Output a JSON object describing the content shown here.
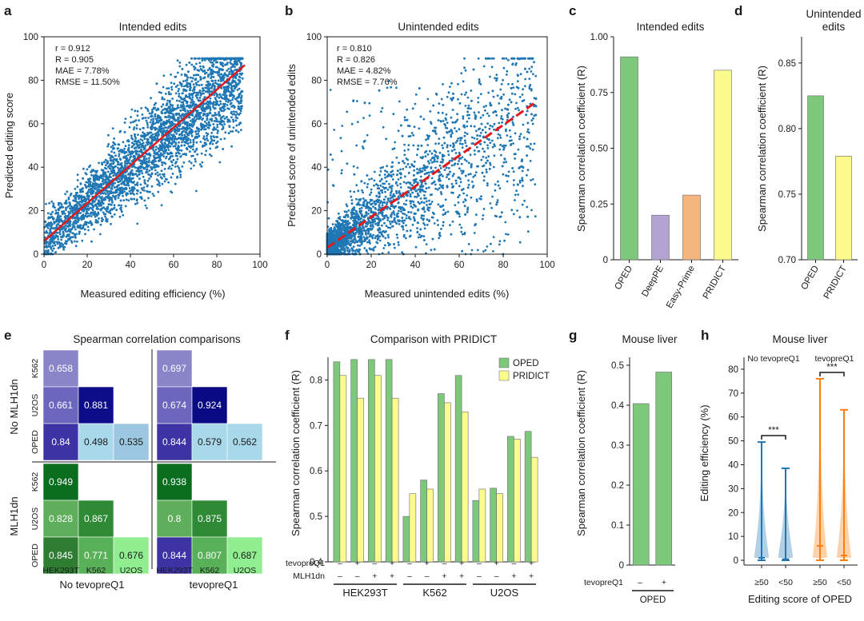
{
  "panels": {
    "a": {
      "label": "a",
      "title": "Intended edits",
      "xlabel": "Measured editing efficiency (%)",
      "ylabel": "Predicted editing score",
      "stats": [
        "r = 0.912",
        "R = 0.905",
        "MAE = 7.78%",
        "RMSE = 11.50%"
      ]
    },
    "b": {
      "label": "b",
      "title": "Unintended edits",
      "xlabel": "Measured unintended edits (%)",
      "ylabel": "Predicted score of unintended edits",
      "stats": [
        "r = 0.810",
        "R = 0.826",
        "MAE = 4.82%",
        "RMSE = 7.76%"
      ]
    },
    "c": {
      "label": "c",
      "title": "Intended edits",
      "ylabel": "Spearman correlation coefficient (R)"
    },
    "d": {
      "label": "d",
      "title_line1": "Unintended",
      "title_line2": "edits",
      "ylabel": "Spearman correlation coefficient (R)"
    },
    "e": {
      "label": "e",
      "title": "Spearman correlation comparisons",
      "row_group_top": "No MLH1dn",
      "row_group_bottom": "MLH1dn",
      "col_group_left": "No tevopreQ1",
      "col_group_right": "tevopreQ1"
    },
    "f": {
      "label": "f",
      "title": "Comparison with PRIDICT",
      "ylabel": "Spearman correlation coefficient (R)",
      "row1_label": "tevopreQ1",
      "row2_label": "MLH1dn",
      "row1_marks": [
        "–",
        "+",
        "–",
        "+",
        "–",
        "+",
        "–",
        "+",
        "–",
        "+",
        "–",
        "+"
      ],
      "row2_marks": [
        "–",
        "–",
        "+",
        "+",
        "–",
        "–",
        "+",
        "+",
        "–",
        "–",
        "+",
        "+"
      ]
    },
    "g": {
      "label": "g",
      "title": "Mouse liver",
      "ylabel": "Spearman correlation coefficient (R)",
      "row_label": "tevopreQ1",
      "marks": [
        "–",
        "+"
      ],
      "group": "OPED"
    },
    "h": {
      "label": "h",
      "title": "Mouse liver",
      "ylabel": "Editing efficiency (%)",
      "xlabel": "Editing score of OPED",
      "group_left": "No tevopreQ1",
      "group_right": "tevopreQ1",
      "sig": "***"
    }
  },
  "chart_data": [
    {
      "id": "a",
      "type": "scatter",
      "title": "Intended edits",
      "xlabel": "Measured editing efficiency (%)",
      "ylabel": "Predicted editing score",
      "xlim": [
        0,
        100
      ],
      "ylim": [
        0,
        100
      ],
      "xticks": [
        0,
        20,
        40,
        60,
        80,
        100
      ],
      "yticks": [
        0,
        20,
        40,
        60,
        80,
        100
      ],
      "fit_line": {
        "x": [
          0,
          93
        ],
        "y": [
          6,
          87
        ],
        "style": "solid"
      },
      "point_color": "#1f77b4",
      "line_color": "#e31a1c"
    },
    {
      "id": "b",
      "type": "scatter",
      "title": "Unintended edits",
      "xlabel": "Measured unintended edits (%)",
      "ylabel": "Predicted score of unintended edits",
      "xlim": [
        0,
        100
      ],
      "ylim": [
        0,
        100
      ],
      "xticks": [
        0,
        20,
        40,
        60,
        80,
        100
      ],
      "yticks": [
        0,
        20,
        40,
        60,
        80,
        100
      ],
      "fit_line": {
        "x": [
          0,
          95
        ],
        "y": [
          3,
          70
        ],
        "style": "dashed"
      },
      "point_color": "#1f77b4",
      "line_color": "#e31a1c"
    },
    {
      "id": "c",
      "type": "bar",
      "title": "Intended edits",
      "categories": [
        "OPED",
        "DeepPE",
        "Easy-Prime",
        "PRIDICT"
      ],
      "values": [
        0.91,
        0.2,
        0.29,
        0.85
      ],
      "colors": [
        "#7dc87b",
        "#b3a3d1",
        "#f5b57e",
        "#fbfb8d"
      ],
      "ylabel": "Spearman correlation coefficient (R)",
      "ylim": [
        0,
        1.0
      ],
      "yticks": [
        "0",
        "0.25",
        "0.50",
        "0.75",
        "1.00"
      ]
    },
    {
      "id": "d",
      "type": "bar",
      "title": "Unintended edits",
      "categories": [
        "OPED",
        "PRIDICT"
      ],
      "values": [
        0.825,
        0.779
      ],
      "colors": [
        "#7dc87b",
        "#fbfb8d"
      ],
      "ylabel": "Spearman correlation coefficient (R)",
      "ylim": [
        0.7,
        0.87
      ],
      "yticks": [
        "0.70",
        "0.75",
        "0.80",
        "0.85"
      ]
    },
    {
      "id": "e",
      "type": "heatmap",
      "quadrants": [
        {
          "group": "No MLH1dn / No tevopreQ1",
          "rows": [
            "K562",
            "U2OS",
            "OPED"
          ],
          "values": [
            [
              "0.658"
            ],
            [
              "0.661",
              "0.881"
            ],
            [
              "0.84",
              "0.498",
              "0.535"
            ]
          ]
        },
        {
          "group": "No MLH1dn / tevopreQ1",
          "rows": [
            "K562",
            "U2OS",
            "OPED"
          ],
          "values": [
            [
              "0.697"
            ],
            [
              "0.674",
              "0.924"
            ],
            [
              "0.844",
              "0.579",
              "0.562"
            ]
          ]
        },
        {
          "group": "MLH1dn / No tevopreQ1",
          "rows": [
            "K562",
            "U2OS",
            "OPED"
          ],
          "cols": [
            "HEK293T",
            "K562",
            "U2OS"
          ],
          "values": [
            [
              "0.949"
            ],
            [
              "0.828",
              "0.867"
            ],
            [
              "0.845",
              "0.771",
              "0.676"
            ]
          ]
        },
        {
          "group": "MLH1dn / tevopreQ1",
          "rows": [
            "K562",
            "U2OS",
            "OPED"
          ],
          "cols": [
            "HEK293T",
            "K562",
            "U2OS"
          ],
          "values": [
            [
              "0.938"
            ],
            [
              "0.8",
              "0.875"
            ],
            [
              "0.844",
              "0.807",
              "0.687"
            ]
          ]
        }
      ]
    },
    {
      "id": "f",
      "type": "bar",
      "title": "Comparison with PRIDICT",
      "groups": [
        "HEK293T",
        "K562",
        "U2OS"
      ],
      "series": [
        {
          "name": "OPED",
          "color": "#7dc87b",
          "values": [
            0.84,
            0.845,
            0.845,
            0.845,
            0.5,
            0.58,
            0.77,
            0.81,
            0.535,
            0.562,
            0.676,
            0.687
          ]
        },
        {
          "name": "PRIDICT",
          "color": "#fbfb8d",
          "values": [
            0.81,
            0.76,
            0.81,
            0.76,
            0.55,
            0.56,
            0.75,
            0.73,
            0.56,
            0.55,
            0.67,
            0.63
          ]
        }
      ],
      "ylabel": "Spearman correlation coefficient (R)",
      "ylim": [
        0.4,
        0.85
      ],
      "yticks": [
        "0.4",
        "0.5",
        "0.6",
        "0.7",
        "0.8"
      ]
    },
    {
      "id": "g",
      "type": "bar",
      "title": "Mouse liver",
      "categories": [
        "–",
        "+"
      ],
      "values": [
        0.404,
        0.483
      ],
      "color": "#7dc87b",
      "ylabel": "Spearman correlation coefficient (R)",
      "ylim": [
        0,
        0.52
      ],
      "yticks": [
        "0",
        "0.1",
        "0.2",
        "0.3",
        "0.4",
        "0.5"
      ]
    },
    {
      "id": "h",
      "type": "violin",
      "title": "Mouse liver",
      "categories": [
        "≥50",
        "<50",
        "≥50",
        "<50"
      ],
      "groups": [
        "No tevopreQ1",
        "No tevopreQ1",
        "tevopreQ1",
        "tevopreQ1"
      ],
      "max": [
        49.5,
        38.5,
        76,
        63
      ],
      "median": [
        1,
        0.5,
        6,
        2
      ],
      "colors": [
        "#1f77b4",
        "#1f77b4",
        "#ff7f0e",
        "#ff7f0e"
      ],
      "ylabel": "Editing efficiency (%)",
      "xlabel": "Editing score of OPED",
      "ylim": [
        -2,
        85
      ],
      "yticks": [
        "0",
        "10",
        "20",
        "30",
        "40",
        "50",
        "60",
        "70",
        "80"
      ]
    }
  ]
}
